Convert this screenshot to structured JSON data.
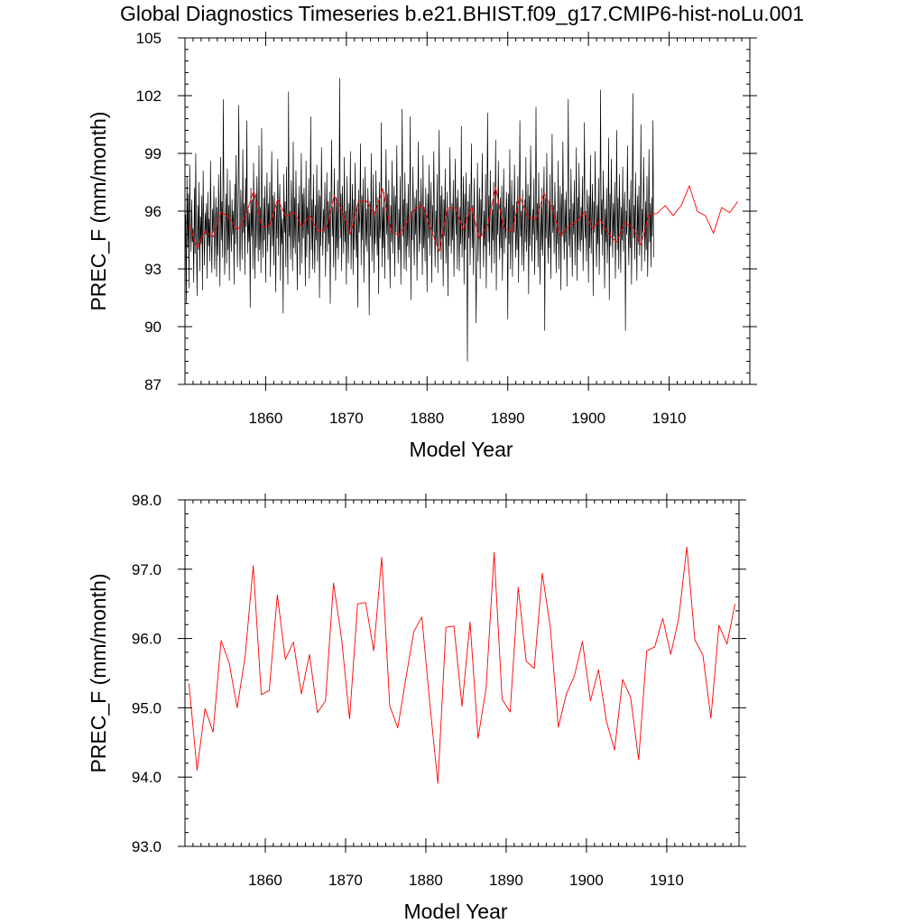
{
  "title": "Global Diagnostics Timeseries b.e21.BHIST.f09_g17.CMIP6-hist-noLu.001",
  "chart_data": [
    {
      "type": "line",
      "xlabel": "Model Year",
      "ylabel": "PREC_F (mm/month)",
      "xlim": [
        1850,
        1920
      ],
      "ylim": [
        87,
        105
      ],
      "xticks": [
        1860,
        1870,
        1880,
        1890,
        1900,
        1910
      ],
      "xtick_labels": [
        "1860",
        "1870",
        "1880",
        "1890",
        "1900",
        "1910"
      ],
      "yticks": [
        87,
        90,
        93,
        96,
        99,
        102,
        105
      ],
      "ytick_labels": [
        "87",
        "90",
        "93",
        "96",
        "99",
        "102",
        "105"
      ],
      "series": [
        {
          "color": "#000000",
          "kind": "monthly",
          "x_start": 1850.0,
          "x_step": 0.083333,
          "values": [
            93.5,
            95.8,
            91.2,
            97.8,
            94.1,
            96.9,
            92.0,
            98.4,
            95.2,
            93.9,
            96.6,
            94.4,
            95.1,
            92.3,
            97.2,
            93.8,
            99.0,
            94.6,
            91.6,
            96.3,
            94.0,
            97.5,
            92.9,
            95.7,
            94.3,
            96.8,
            91.9,
            98.1,
            95.0,
            93.2,
            95.9,
            94.8,
            96.4,
            92.5,
            97.0,
            94.2,
            95.6,
            93.4,
            98.6,
            94.7,
            92.8,
            96.1,
            94.9,
            97.3,
            93.0,
            95.4,
            96.7,
            92.6,
            96.2,
            93.7,
            97.9,
            95.3,
            92.1,
            98.8,
            94.5,
            96.5,
            93.6,
            101.8,
            95.5,
            92.7,
            95.1,
            96.9,
            93.3,
            98.2,
            94.0,
            96.3,
            92.4,
            97.6,
            95.0,
            93.9,
            96.6,
            94.8,
            96.0,
            92.2,
            97.4,
            94.3,
            98.9,
            95.8,
            93.1,
            96.8,
            101.5,
            94.6,
            92.9,
            97.1,
            95.6,
            93.5,
            99.2,
            94.9,
            96.4,
            92.7,
            97.7,
            95.2,
            100.7,
            93.8,
            96.1,
            94.4,
            95.9,
            91.0,
            97.2,
            94.7,
            96.6,
            93.0,
            98.5,
            95.3,
            92.5,
            96.9,
            94.1,
            97.8,
            95.7,
            93.4,
            99.4,
            94.0,
            96.2,
            92.8,
            100.3,
            95.1,
            93.6,
            96.7,
            94.5,
            97.3,
            92.3,
            95.8,
            98.0,
            93.9,
            96.4,
            94.8,
            97.5,
            92.6,
            95.5,
            99.1,
            94.2,
            96.8,
            93.2,
            97.0,
            95.4,
            91.8,
            96.3,
            94.6,
            98.7,
            93.7,
            95.9,
            97.4,
            92.4,
            96.1,
            94.3,
            95.6,
            90.7,
            97.9,
            94.9,
            96.5,
            93.1,
            98.3,
            95.0,
            92.2,
            102.2,
            94.7,
            96.0,
            93.5,
            97.6,
            95.8,
            92.9,
            99.6,
            94.1,
            96.7,
            93.8,
            98.1,
            95.2,
            91.9,
            96.4,
            94.4,
            97.3,
            92.7,
            95.7,
            99.0,
            93.3,
            96.9,
            94.6,
            97.2,
            95.5,
            92.1,
            98.6,
            93.6,
            96.2,
            94.8,
            97.7,
            92.5,
            95.4,
            100.9,
            94.0,
            96.6,
            93.0,
            97.9,
            95.1,
            92.8,
            96.3,
            94.5,
            98.4,
            93.4,
            95.9,
            97.1,
            91.5,
            96.8,
            94.2,
            99.3,
            95.6,
            93.7,
            96.1,
            94.9,
            97.5,
            92.6,
            95.3,
            98.0,
            93.9,
            96.5,
            94.3,
            97.0,
            91.2,
            95.8,
            99.7,
            94.7,
            96.2,
            93.1,
            98.2,
            95.4,
            92.4,
            96.7,
            94.1,
            97.6,
            93.5,
            95.0,
            102.9,
            94.6,
            96.9,
            92.9,
            97.3,
            95.7,
            93.8,
            98.8,
            94.4,
            96.0,
            92.2,
            97.8,
            95.2,
            93.3,
            96.4,
            94.8,
            99.1,
            93.0,
            95.6,
            97.4,
            92.7,
            96.6,
            94.0,
            98.5,
            95.5,
            93.6,
            96.3,
            91.0,
            97.1,
            94.9,
            95.9,
            99.5,
            93.2,
            96.8,
            94.5,
            97.7,
            92.3,
            95.1,
            98.3,
            94.2,
            96.1,
            93.9,
            97.2,
            95.8,
            90.6,
            96.5,
            94.7,
            99.0,
            93.4,
            95.3,
            97.9,
            92.8,
            96.0,
            94.3,
            98.1,
            95.6,
            93.7,
            96.7,
            91.7,
            97.5,
            94.6,
            95.4,
            100.6,
            93.1,
            96.2,
            94.1,
            97.0,
            92.5,
            95.9,
            99.2,
            94.8,
            96.9,
            93.5,
            97.6,
            95.0,
            92.0,
            96.3,
            94.4,
            98.6,
            93.8,
            95.7,
            97.3,
            92.6,
            96.8,
            94.9,
            99.4,
            95.2,
            93.3,
            96.1,
            94.0,
            97.8,
            92.2,
            95.5,
            101.3,
            94.7,
            96.6,
            93.0,
            98.0,
            95.3,
            92.9,
            96.4,
            94.2,
            97.4,
            93.6,
            95.8,
            100.9,
            91.4,
            96.0,
            94.5,
            98.3,
            95.1,
            93.2,
            96.7,
            94.8,
            97.1,
            92.4,
            95.4,
            99.6,
            93.9,
            96.5,
            94.3,
            97.7,
            95.6,
            92.7,
            98.9,
            94.1,
            96.2,
            93.4,
            97.2,
            95.0,
            91.8,
            96.9,
            94.6,
            98.4,
            93.7,
            95.9,
            97.5,
            92.3,
            96.3,
            94.9,
            99.1,
            95.5,
            93.1,
            96.0,
            94.4,
            97.9,
            92.8,
            95.2,
            100.2,
            94.0,
            96.8,
            93.5,
            97.3,
            95.7,
            92.1,
            96.6,
            94.7,
            98.2,
            93.3,
            95.3,
            97.0,
            91.6,
            96.1,
            94.2,
            99.3,
            95.8,
            93.8,
            96.4,
            94.5,
            97.6,
            92.6,
            95.6,
            98.7,
            94.8,
            96.7,
            93.0,
            97.1,
            95.1,
            92.9,
            96.2,
            94.3,
            100.4,
            93.6,
            95.5,
            97.8,
            92.2,
            96.9,
            94.0,
            98.0,
            95.4,
            88.2,
            96.5,
            94.6,
            97.4,
            93.2,
            95.9,
            99.5,
            94.1,
            96.3,
            92.7,
            97.7,
            95.0,
            93.9,
            90.2,
            94.9,
            98.5,
            93.4,
            95.7,
            97.2,
            92.5,
            96.6,
            94.7,
            99.0,
            95.3,
            93.1,
            96.0,
            94.2,
            97.9,
            92.0,
            95.8,
            101.1,
            94.4,
            96.8,
            93.7,
            98.1,
            95.6,
            92.8,
            96.1,
            94.5,
            97.5,
            93.3,
            95.2,
            99.7,
            91.9,
            96.4,
            94.8,
            98.6,
            95.0,
            93.5,
            96.7,
            94.1,
            97.3,
            92.4,
            95.4,
            98.2,
            93.8,
            96.2,
            94.6,
            97.0,
            95.9,
            90.4,
            96.9,
            94.3,
            99.2,
            93.0,
            95.5,
            97.6,
            92.6,
            96.3,
            94.9,
            98.4,
            95.1,
            93.6,
            96.5,
            94.0,
            97.8,
            92.3,
            95.7,
            100.7,
            94.7,
            96.0,
            93.2,
            97.1,
            95.2,
            92.9,
            96.6,
            94.4,
            98.8,
            93.9,
            95.3,
            97.4,
            91.7,
            96.8,
            94.2,
            99.4,
            95.8,
            93.4,
            96.1,
            94.8,
            97.7,
            92.7,
            95.6,
            101.4,
            94.5,
            96.4,
            93.1,
            98.0,
            95.0,
            92.2,
            96.2,
            94.0,
            97.2,
            93.7,
            95.9,
            98.3,
            89.8,
            96.7,
            94.6,
            99.0,
            95.4,
            93.3,
            96.5,
            94.1,
            97.9,
            92.5,
            95.5,
            100.0,
            94.9,
            96.3,
            93.8,
            97.5,
            95.7,
            92.8,
            96.0,
            94.3,
            98.6,
            93.0,
            95.2,
            97.3,
            91.9,
            96.9,
            94.7,
            99.6,
            95.1,
            93.5,
            96.6,
            94.4,
            97.0,
            92.1,
            95.8,
            101.8,
            94.2,
            96.1,
            93.6,
            98.2,
            95.3,
            92.6,
            96.4,
            94.8,
            97.6,
            93.2,
            95.6,
            99.3,
            92.4,
            96.7,
            94.0,
            98.5,
            95.0,
            93.9,
            96.2,
            94.5,
            97.8,
            92.9,
            95.4,
            100.6,
            94.6,
            96.0,
            93.4,
            97.1,
            95.9,
            92.3,
            96.8,
            94.1,
            98.9,
            93.8,
            95.7,
            97.4,
            91.6,
            96.5,
            94.9,
            99.1,
            95.2,
            93.1,
            96.3,
            94.3,
            97.7,
            92.7,
            95.5,
            102.3,
            94.8,
            96.6,
            93.7,
            98.1,
            95.8,
            92.0,
            96.1,
            94.4,
            97.2,
            93.3,
            95.1,
            99.8,
            91.4,
            96.9,
            94.2,
            98.7,
            95.6,
            93.6,
            96.4,
            94.7,
            97.5,
            92.5,
            95.3,
            100.2,
            94.0,
            96.7,
            93.0,
            97.9,
            95.4,
            92.8,
            96.2,
            94.5,
            98.3,
            93.9,
            95.8,
            97.0,
            89.8,
            96.0,
            94.8,
            99.4,
            95.1,
            93.2,
            96.6,
            94.1,
            97.6,
            92.2,
            95.7,
            102.1,
            94.6,
            96.3,
            93.5,
            98.0,
            95.2,
            92.4,
            96.8,
            94.3,
            97.3,
            93.7,
            95.5,
            100.5,
            92.9,
            96.1,
            94.9,
            98.8,
            95.9,
            93.4,
            96.5,
            94.0,
            97.8,
            92.6,
            95.0,
            99.2,
            94.4,
            96.4,
            93.1,
            96.7,
            94.7,
            100.7,
            93.6
          ]
        },
        {
          "color": "#ff0000",
          "kind": "annual_mean",
          "x_start": 1850.5,
          "x_step": 1.0,
          "values": [
            95.35,
            94.1,
            94.99,
            94.65,
            95.97,
            95.65,
            95.0,
            95.75,
            97.05,
            95.19,
            95.25,
            96.63,
            95.7,
            95.95,
            95.2,
            95.77,
            94.93,
            95.1,
            96.8,
            96.0,
            94.84,
            96.5,
            96.52,
            95.82,
            97.17,
            95.03,
            94.71,
            95.42,
            96.1,
            96.31,
            95.05,
            93.91,
            96.16,
            96.18,
            95.02,
            96.24,
            94.56,
            95.28,
            97.24,
            95.12,
            94.94,
            96.74,
            95.67,
            95.57,
            96.94,
            96.16,
            94.72,
            95.2,
            95.46,
            95.96,
            95.1,
            95.55,
            94.8,
            94.39,
            95.41,
            95.15,
            94.25,
            95.82,
            95.88,
            96.29,
            95.77,
            96.3,
            97.32,
            95.98,
            95.76,
            94.85,
            96.19,
            95.92,
            96.5
          ]
        }
      ]
    },
    {
      "type": "line",
      "xlabel": "Model Year",
      "ylabel": "PREC_F (mm/month)",
      "xlim": [
        1850,
        1919
      ],
      "ylim": [
        93,
        98
      ],
      "xticks": [
        1860,
        1870,
        1880,
        1890,
        1900,
        1910
      ],
      "xtick_labels": [
        "1860",
        "1870",
        "1880",
        "1890",
        "1900",
        "1910"
      ],
      "yticks": [
        93,
        94,
        95,
        96,
        97,
        98
      ],
      "ytick_labels": [
        "93.0",
        "94.0",
        "95.0",
        "96.0",
        "97.0",
        "98.0"
      ],
      "series": [
        {
          "color": "#ff0000",
          "kind": "annual_mean",
          "x_start": 1850.5,
          "x_step": 1.0,
          "values": [
            95.35,
            94.1,
            94.99,
            94.65,
            95.97,
            95.65,
            95.0,
            95.75,
            97.05,
            95.19,
            95.25,
            96.63,
            95.7,
            95.95,
            95.2,
            95.77,
            94.93,
            95.1,
            96.8,
            96.0,
            94.84,
            96.5,
            96.52,
            95.82,
            97.17,
            95.03,
            94.71,
            95.42,
            96.1,
            96.31,
            95.05,
            93.91,
            96.16,
            96.18,
            95.02,
            96.24,
            94.56,
            95.28,
            97.24,
            95.12,
            94.94,
            96.74,
            95.67,
            95.57,
            96.94,
            96.16,
            94.72,
            95.2,
            95.46,
            95.96,
            95.1,
            95.55,
            94.8,
            94.39,
            95.41,
            95.15,
            94.25,
            95.82,
            95.88,
            96.29,
            95.77,
            96.3,
            97.32,
            95.98,
            95.76,
            94.85,
            96.19,
            95.92,
            96.5
          ]
        }
      ]
    }
  ]
}
